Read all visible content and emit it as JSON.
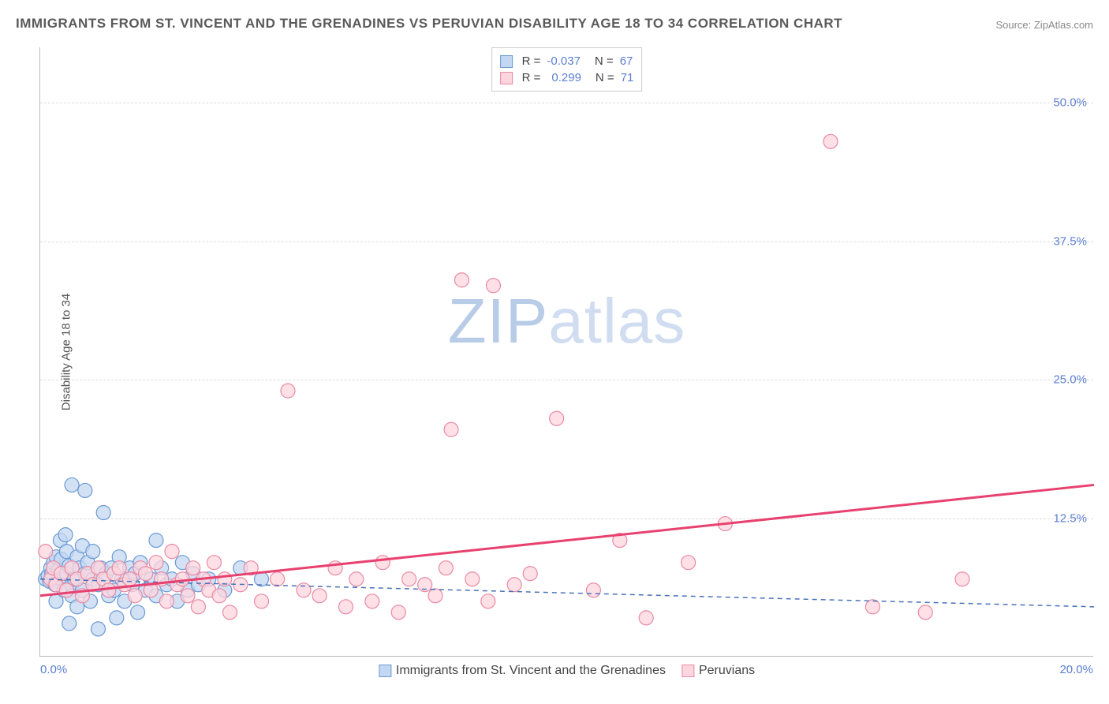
{
  "title": "IMMIGRANTS FROM ST. VINCENT AND THE GRENADINES VS PERUVIAN DISABILITY AGE 18 TO 34 CORRELATION CHART",
  "source": "Source: ZipAtlas.com",
  "y_axis_label": "Disability Age 18 to 34",
  "watermark_zip": "ZIP",
  "watermark_atlas": "atlas",
  "chart": {
    "type": "scatter",
    "background_color": "#ffffff",
    "grid_color": "#dddddd",
    "axis_color": "#bbbbbb",
    "tick_label_color": "#5b7fd1",
    "tick_fontsize": 15,
    "xlim": [
      0.0,
      20.0
    ],
    "ylim": [
      0.0,
      55.0
    ],
    "x_ticks": [
      {
        "value": 0.0,
        "label": "0.0%"
      },
      {
        "value": 20.0,
        "label": "20.0%"
      }
    ],
    "y_ticks": [
      {
        "value": 12.5,
        "label": "12.5%"
      },
      {
        "value": 25.0,
        "label": "25.0%"
      },
      {
        "value": 37.5,
        "label": "37.5%"
      },
      {
        "value": 50.0,
        "label": "50.0%"
      }
    ],
    "series": [
      {
        "name": "Immigrants from St. Vincent and the Grenadines",
        "marker_fill": "#c4d7f2",
        "marker_stroke": "#6a9ad4",
        "marker_radius": 9,
        "marker_opacity": 0.75,
        "trend_color": "#4a72b8",
        "trend_style": "dashed",
        "trend_width": 1.5,
        "R": "-0.037",
        "N": "67",
        "trend": {
          "x1": 0.0,
          "y1": 7.0,
          "x2": 20.0,
          "y2": 4.5
        },
        "points": [
          [
            0.1,
            7.0
          ],
          [
            0.15,
            7.3
          ],
          [
            0.18,
            6.8
          ],
          [
            0.2,
            8.0
          ],
          [
            0.22,
            7.5
          ],
          [
            0.25,
            8.5
          ],
          [
            0.28,
            6.5
          ],
          [
            0.3,
            9.0
          ],
          [
            0.3,
            5.0
          ],
          [
            0.35,
            7.8
          ],
          [
            0.38,
            10.5
          ],
          [
            0.4,
            7.0
          ],
          [
            0.4,
            8.8
          ],
          [
            0.45,
            6.0
          ],
          [
            0.48,
            11.0
          ],
          [
            0.5,
            7.5
          ],
          [
            0.5,
            9.5
          ],
          [
            0.55,
            8.2
          ],
          [
            0.55,
            3.0
          ],
          [
            0.6,
            6.5
          ],
          [
            0.6,
            5.5
          ],
          [
            0.6,
            15.5
          ],
          [
            0.65,
            7.0
          ],
          [
            0.7,
            9.0
          ],
          [
            0.7,
            4.5
          ],
          [
            0.75,
            8.0
          ],
          [
            0.8,
            10.0
          ],
          [
            0.8,
            6.0
          ],
          [
            0.85,
            7.5
          ],
          [
            0.85,
            15.0
          ],
          [
            0.9,
            8.5
          ],
          [
            0.95,
            5.0
          ],
          [
            1.0,
            7.0
          ],
          [
            1.0,
            9.5
          ],
          [
            1.1,
            6.5
          ],
          [
            1.1,
            2.5
          ],
          [
            1.15,
            8.0
          ],
          [
            1.2,
            13.0
          ],
          [
            1.25,
            7.5
          ],
          [
            1.3,
            5.5
          ],
          [
            1.35,
            8.0
          ],
          [
            1.4,
            6.0
          ],
          [
            1.45,
            3.5
          ],
          [
            1.5,
            9.0
          ],
          [
            1.55,
            7.0
          ],
          [
            1.6,
            5.0
          ],
          [
            1.7,
            8.0
          ],
          [
            1.75,
            6.5
          ],
          [
            1.8,
            7.5
          ],
          [
            1.85,
            4.0
          ],
          [
            1.9,
            8.5
          ],
          [
            2.0,
            6.0
          ],
          [
            2.1,
            7.0
          ],
          [
            2.2,
            10.5
          ],
          [
            2.2,
            5.5
          ],
          [
            2.3,
            8.0
          ],
          [
            2.4,
            6.5
          ],
          [
            2.5,
            7.0
          ],
          [
            2.6,
            5.0
          ],
          [
            2.7,
            8.5
          ],
          [
            2.8,
            6.0
          ],
          [
            2.9,
            7.5
          ],
          [
            3.0,
            6.5
          ],
          [
            3.2,
            7.0
          ],
          [
            3.5,
            6.0
          ],
          [
            3.8,
            8.0
          ],
          [
            4.2,
            7.0
          ]
        ]
      },
      {
        "name": "Peruvians",
        "marker_fill": "#fdd5de",
        "marker_stroke": "#e88aa4",
        "marker_radius": 9,
        "marker_opacity": 0.75,
        "trend_color": "#e8416f",
        "trend_style": "solid",
        "trend_width": 3,
        "R": "0.299",
        "N": "71",
        "trend": {
          "x1": 0.0,
          "y1": 5.5,
          "x2": 20.0,
          "y2": 15.5
        },
        "points": [
          [
            0.1,
            9.5
          ],
          [
            0.2,
            7.0
          ],
          [
            0.25,
            8.0
          ],
          [
            0.3,
            6.5
          ],
          [
            0.4,
            7.5
          ],
          [
            0.5,
            6.0
          ],
          [
            0.6,
            8.0
          ],
          [
            0.7,
            7.0
          ],
          [
            0.8,
            5.5
          ],
          [
            0.9,
            7.5
          ],
          [
            1.0,
            6.5
          ],
          [
            1.1,
            8.0
          ],
          [
            1.2,
            7.0
          ],
          [
            1.3,
            6.0
          ],
          [
            1.4,
            7.5
          ],
          [
            1.5,
            8.0
          ],
          [
            1.6,
            6.5
          ],
          [
            1.7,
            7.0
          ],
          [
            1.8,
            5.5
          ],
          [
            1.9,
            8.0
          ],
          [
            2.0,
            7.5
          ],
          [
            2.1,
            6.0
          ],
          [
            2.2,
            8.5
          ],
          [
            2.3,
            7.0
          ],
          [
            2.4,
            5.0
          ],
          [
            2.5,
            9.5
          ],
          [
            2.6,
            6.5
          ],
          [
            2.7,
            7.0
          ],
          [
            2.8,
            5.5
          ],
          [
            2.9,
            8.0
          ],
          [
            3.0,
            4.5
          ],
          [
            3.1,
            7.0
          ],
          [
            3.2,
            6.0
          ],
          [
            3.3,
            8.5
          ],
          [
            3.4,
            5.5
          ],
          [
            3.5,
            7.0
          ],
          [
            3.6,
            4.0
          ],
          [
            3.8,
            6.5
          ],
          [
            4.0,
            8.0
          ],
          [
            4.2,
            5.0
          ],
          [
            4.5,
            7.0
          ],
          [
            4.7,
            24.0
          ],
          [
            5.0,
            6.0
          ],
          [
            5.3,
            5.5
          ],
          [
            5.6,
            8.0
          ],
          [
            5.8,
            4.5
          ],
          [
            6.0,
            7.0
          ],
          [
            6.3,
            5.0
          ],
          [
            6.5,
            8.5
          ],
          [
            6.8,
            4.0
          ],
          [
            7.0,
            7.0
          ],
          [
            7.3,
            6.5
          ],
          [
            7.5,
            5.5
          ],
          [
            7.7,
            8.0
          ],
          [
            7.8,
            20.5
          ],
          [
            8.0,
            34.0
          ],
          [
            8.2,
            7.0
          ],
          [
            8.5,
            5.0
          ],
          [
            8.6,
            33.5
          ],
          [
            9.0,
            6.5
          ],
          [
            9.3,
            7.5
          ],
          [
            9.8,
            21.5
          ],
          [
            10.5,
            6.0
          ],
          [
            11.0,
            10.5
          ],
          [
            11.5,
            3.5
          ],
          [
            12.3,
            8.5
          ],
          [
            13.0,
            12.0
          ],
          [
            15.0,
            46.5
          ],
          [
            15.8,
            4.5
          ],
          [
            16.8,
            4.0
          ],
          [
            17.5,
            7.0
          ]
        ]
      }
    ],
    "legend_bottom": [
      {
        "swatch_fill": "#c4d7f2",
        "swatch_stroke": "#6a9ad4",
        "label": "Immigrants from St. Vincent and the Grenadines"
      },
      {
        "swatch_fill": "#fdd5de",
        "swatch_stroke": "#e88aa4",
        "label": "Peruvians"
      }
    ]
  }
}
